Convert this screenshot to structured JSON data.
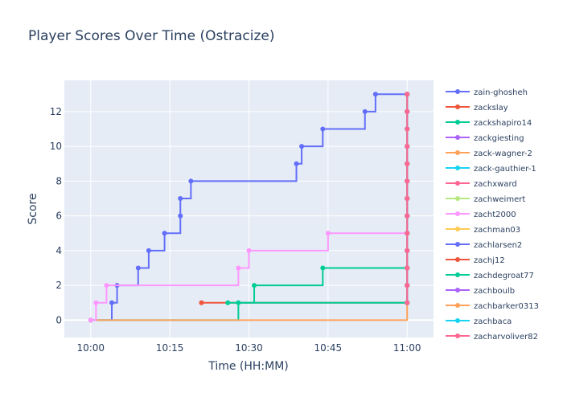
{
  "chart_data": {
    "type": "line",
    "line_shape": "step-after",
    "title": "Player Scores Over Time (Ostracize)",
    "xlabel": "Time (HH:MM)",
    "ylabel": "Score",
    "x_unit": "HH:MM",
    "xlim": [
      "09:55",
      "11:05"
    ],
    "ylim": [
      -1,
      13.8
    ],
    "x_ticks": [
      "10:00",
      "10:15",
      "10:30",
      "10:45",
      "11:00"
    ],
    "y_ticks": [
      0,
      2,
      4,
      6,
      8,
      10,
      12
    ],
    "grid": true,
    "legend_position": "right",
    "plot_background": "#E5ECF6",
    "series": [
      {
        "name": "zain-ghosheh",
        "color": "#636EFA",
        "points": [
          [
            "10:00",
            0
          ],
          [
            "10:04",
            1
          ],
          [
            "10:05",
            2
          ],
          [
            "10:09",
            3
          ],
          [
            "10:11",
            4
          ],
          [
            "10:14",
            5
          ],
          [
            "10:17",
            6
          ],
          [
            "10:17",
            7
          ],
          [
            "10:19",
            8
          ],
          [
            "10:39",
            9
          ],
          [
            "10:40",
            10
          ],
          [
            "10:44",
            11
          ],
          [
            "10:52",
            12
          ],
          [
            "10:54",
            13
          ],
          [
            "11:00",
            1
          ],
          [
            "11:00",
            2
          ],
          [
            "11:00",
            3
          ],
          [
            "11:00",
            4
          ],
          [
            "11:00",
            5
          ],
          [
            "11:00",
            6
          ],
          [
            "11:00",
            7
          ],
          [
            "11:00",
            8
          ],
          [
            "11:00",
            9
          ],
          [
            "11:00",
            10
          ],
          [
            "11:00",
            11
          ],
          [
            "11:00",
            12
          ],
          [
            "11:00",
            13
          ]
        ]
      },
      {
        "name": "zackslay",
        "color": "#EF553B",
        "points": [
          [
            "10:21",
            1
          ],
          [
            "11:00",
            1
          ],
          [
            "11:00",
            2
          ],
          [
            "11:00",
            3
          ],
          [
            "11:00",
            4
          ],
          [
            "11:00",
            5
          ],
          [
            "11:00",
            6
          ],
          [
            "11:00",
            7
          ],
          [
            "11:00",
            8
          ],
          [
            "11:00",
            9
          ],
          [
            "11:00",
            10
          ],
          [
            "11:00",
            11
          ],
          [
            "11:00",
            12
          ],
          [
            "11:00",
            13
          ]
        ]
      },
      {
        "name": "zackshapiro14",
        "color": "#00CC96",
        "points": [
          [
            "10:00",
            0
          ],
          [
            "10:28",
            1
          ],
          [
            "10:31",
            2
          ],
          [
            "10:44",
            3
          ],
          [
            "11:00",
            1
          ],
          [
            "11:00",
            2
          ],
          [
            "11:00",
            3
          ],
          [
            "11:00",
            4
          ],
          [
            "11:00",
            5
          ],
          [
            "11:00",
            6
          ],
          [
            "11:00",
            7
          ],
          [
            "11:00",
            8
          ],
          [
            "11:00",
            9
          ],
          [
            "11:00",
            10
          ],
          [
            "11:00",
            11
          ],
          [
            "11:00",
            12
          ],
          [
            "11:00",
            13
          ]
        ]
      },
      {
        "name": "zackgiesting",
        "color": "#AB63FA",
        "points": [
          [
            "11:00",
            1
          ],
          [
            "11:00",
            2
          ],
          [
            "11:00",
            3
          ],
          [
            "11:00",
            4
          ],
          [
            "11:00",
            5
          ],
          [
            "11:00",
            6
          ],
          [
            "11:00",
            7
          ],
          [
            "11:00",
            8
          ],
          [
            "11:00",
            9
          ],
          [
            "11:00",
            10
          ],
          [
            "11:00",
            11
          ],
          [
            "11:00",
            12
          ],
          [
            "11:00",
            13
          ]
        ]
      },
      {
        "name": "zack-wagner-2",
        "color": "#FFA15A",
        "points": [
          [
            "10:00",
            0
          ],
          [
            "11:00",
            1
          ],
          [
            "11:00",
            2
          ],
          [
            "11:00",
            3
          ],
          [
            "11:00",
            4
          ],
          [
            "11:00",
            5
          ],
          [
            "11:00",
            6
          ],
          [
            "11:00",
            7
          ],
          [
            "11:00",
            8
          ],
          [
            "11:00",
            9
          ],
          [
            "11:00",
            10
          ],
          [
            "11:00",
            11
          ],
          [
            "11:00",
            12
          ],
          [
            "11:00",
            13
          ]
        ]
      },
      {
        "name": "zack-gauthier-1",
        "color": "#19D3F3",
        "points": [
          [
            "11:00",
            1
          ],
          [
            "11:00",
            2
          ],
          [
            "11:00",
            3
          ],
          [
            "11:00",
            4
          ],
          [
            "11:00",
            5
          ],
          [
            "11:00",
            6
          ],
          [
            "11:00",
            7
          ],
          [
            "11:00",
            8
          ],
          [
            "11:00",
            9
          ],
          [
            "11:00",
            10
          ],
          [
            "11:00",
            11
          ],
          [
            "11:00",
            12
          ],
          [
            "11:00",
            13
          ]
        ]
      },
      {
        "name": "zachxward",
        "color": "#FF6692",
        "points": [
          [
            "11:00",
            1
          ],
          [
            "11:00",
            2
          ],
          [
            "11:00",
            3
          ],
          [
            "11:00",
            4
          ],
          [
            "11:00",
            5
          ],
          [
            "11:00",
            6
          ],
          [
            "11:00",
            7
          ],
          [
            "11:00",
            8
          ],
          [
            "11:00",
            9
          ],
          [
            "11:00",
            10
          ],
          [
            "11:00",
            11
          ],
          [
            "11:00",
            12
          ],
          [
            "11:00",
            13
          ]
        ]
      },
      {
        "name": "zachweimert",
        "color": "#B6E880",
        "points": [
          [
            "11:00",
            1
          ],
          [
            "11:00",
            2
          ],
          [
            "11:00",
            3
          ],
          [
            "11:00",
            4
          ],
          [
            "11:00",
            5
          ],
          [
            "11:00",
            6
          ],
          [
            "11:00",
            7
          ],
          [
            "11:00",
            8
          ],
          [
            "11:00",
            9
          ],
          [
            "11:00",
            10
          ],
          [
            "11:00",
            11
          ],
          [
            "11:00",
            12
          ],
          [
            "11:00",
            13
          ]
        ]
      },
      {
        "name": "zacht2000",
        "color": "#FF97FF",
        "points": [
          [
            "10:00",
            0
          ],
          [
            "10:01",
            1
          ],
          [
            "10:03",
            2
          ],
          [
            "10:28",
            3
          ],
          [
            "10:30",
            4
          ],
          [
            "10:45",
            5
          ],
          [
            "11:00",
            1
          ],
          [
            "11:00",
            2
          ],
          [
            "11:00",
            3
          ],
          [
            "11:00",
            4
          ],
          [
            "11:00",
            5
          ],
          [
            "11:00",
            6
          ],
          [
            "11:00",
            7
          ],
          [
            "11:00",
            8
          ],
          [
            "11:00",
            9
          ],
          [
            "11:00",
            10
          ],
          [
            "11:00",
            11
          ],
          [
            "11:00",
            12
          ],
          [
            "11:00",
            13
          ]
        ]
      },
      {
        "name": "zachman03",
        "color": "#FECB52",
        "points": [
          [
            "11:00",
            1
          ],
          [
            "11:00",
            2
          ],
          [
            "11:00",
            3
          ],
          [
            "11:00",
            4
          ],
          [
            "11:00",
            5
          ],
          [
            "11:00",
            6
          ],
          [
            "11:00",
            7
          ],
          [
            "11:00",
            8
          ],
          [
            "11:00",
            9
          ],
          [
            "11:00",
            10
          ],
          [
            "11:00",
            11
          ],
          [
            "11:00",
            12
          ],
          [
            "11:00",
            13
          ]
        ]
      },
      {
        "name": "zachlarsen2",
        "color": "#636EFA",
        "points": [
          [
            "11:00",
            1
          ],
          [
            "11:00",
            2
          ],
          [
            "11:00",
            3
          ],
          [
            "11:00",
            4
          ],
          [
            "11:00",
            5
          ],
          [
            "11:00",
            6
          ],
          [
            "11:00",
            7
          ],
          [
            "11:00",
            8
          ],
          [
            "11:00",
            9
          ],
          [
            "11:00",
            10
          ],
          [
            "11:00",
            11
          ],
          [
            "11:00",
            12
          ],
          [
            "11:00",
            13
          ]
        ]
      },
      {
        "name": "zachj12",
        "color": "#EF553B",
        "points": [
          [
            "11:00",
            1
          ],
          [
            "11:00",
            2
          ],
          [
            "11:00",
            3
          ],
          [
            "11:00",
            4
          ],
          [
            "11:00",
            5
          ],
          [
            "11:00",
            6
          ],
          [
            "11:00",
            7
          ],
          [
            "11:00",
            8
          ],
          [
            "11:00",
            9
          ],
          [
            "11:00",
            10
          ],
          [
            "11:00",
            11
          ],
          [
            "11:00",
            12
          ],
          [
            "11:00",
            13
          ]
        ]
      },
      {
        "name": "zachdegroat77",
        "color": "#00CC96",
        "points": [
          [
            "10:26",
            1
          ],
          [
            "11:00",
            1
          ],
          [
            "11:00",
            2
          ],
          [
            "11:00",
            3
          ],
          [
            "11:00",
            4
          ],
          [
            "11:00",
            5
          ],
          [
            "11:00",
            6
          ],
          [
            "11:00",
            7
          ],
          [
            "11:00",
            8
          ],
          [
            "11:00",
            9
          ],
          [
            "11:00",
            10
          ],
          [
            "11:00",
            11
          ],
          [
            "11:00",
            12
          ],
          [
            "11:00",
            13
          ]
        ]
      },
      {
        "name": "zachboulb",
        "color": "#AB63FA",
        "points": [
          [
            "11:00",
            1
          ],
          [
            "11:00",
            2
          ],
          [
            "11:00",
            3
          ],
          [
            "11:00",
            4
          ],
          [
            "11:00",
            5
          ],
          [
            "11:00",
            6
          ],
          [
            "11:00",
            7
          ],
          [
            "11:00",
            8
          ],
          [
            "11:00",
            9
          ],
          [
            "11:00",
            10
          ],
          [
            "11:00",
            11
          ],
          [
            "11:00",
            12
          ],
          [
            "11:00",
            13
          ]
        ]
      },
      {
        "name": "zachbarker0313",
        "color": "#FFA15A",
        "points": [
          [
            "11:00",
            1
          ],
          [
            "11:00",
            2
          ],
          [
            "11:00",
            3
          ],
          [
            "11:00",
            4
          ],
          [
            "11:00",
            5
          ],
          [
            "11:00",
            6
          ],
          [
            "11:00",
            7
          ],
          [
            "11:00",
            8
          ],
          [
            "11:00",
            9
          ],
          [
            "11:00",
            10
          ],
          [
            "11:00",
            11
          ],
          [
            "11:00",
            12
          ],
          [
            "11:00",
            13
          ]
        ]
      },
      {
        "name": "zachbaca",
        "color": "#19D3F3",
        "points": [
          [
            "11:00",
            1
          ],
          [
            "11:00",
            2
          ],
          [
            "11:00",
            3
          ],
          [
            "11:00",
            4
          ],
          [
            "11:00",
            5
          ],
          [
            "11:00",
            6
          ],
          [
            "11:00",
            7
          ],
          [
            "11:00",
            8
          ],
          [
            "11:00",
            9
          ],
          [
            "11:00",
            10
          ],
          [
            "11:00",
            11
          ],
          [
            "11:00",
            12
          ],
          [
            "11:00",
            13
          ]
        ]
      },
      {
        "name": "zacharyoliver82",
        "color": "#FF6692",
        "points": [
          [
            "11:00",
            1
          ],
          [
            "11:00",
            2
          ],
          [
            "11:00",
            3
          ],
          [
            "11:00",
            4
          ],
          [
            "11:00",
            5
          ],
          [
            "11:00",
            6
          ],
          [
            "11:00",
            7
          ],
          [
            "11:00",
            8
          ],
          [
            "11:00",
            9
          ],
          [
            "11:00",
            10
          ],
          [
            "11:00",
            11
          ],
          [
            "11:00",
            12
          ],
          [
            "11:00",
            13
          ]
        ]
      }
    ]
  }
}
